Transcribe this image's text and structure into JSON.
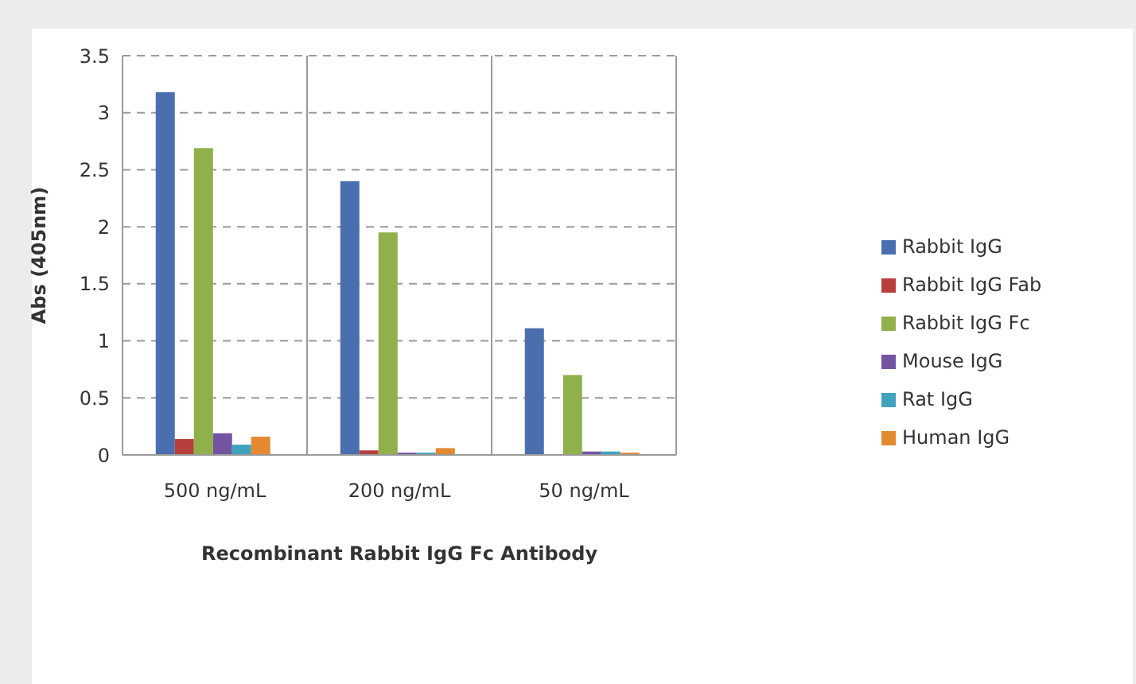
{
  "chart_data": {
    "type": "bar",
    "xlabel": "Recombinant Rabbit IgG Fc Antibody",
    "ylabel": "Abs (405nm)",
    "categories": [
      "500 ng/mL",
      "200 ng/mL",
      "50 ng/mL"
    ],
    "series": [
      {
        "name": "Rabbit IgG",
        "color": "#4a6fae",
        "values": [
          3.18,
          2.4,
          1.11
        ]
      },
      {
        "name": "Rabbit IgG Fab",
        "color": "#b8403c",
        "values": [
          0.14,
          0.04,
          null
        ]
      },
      {
        "name": "Rabbit IgG Fc",
        "color": "#8fb04a",
        "values": [
          2.69,
          1.95,
          0.7
        ]
      },
      {
        "name": "Mouse IgG",
        "color": "#7354a0",
        "values": [
          0.19,
          0.02,
          0.03
        ]
      },
      {
        "name": "Rat IgG",
        "color": "#3fa3c0",
        "values": [
          0.09,
          0.02,
          0.03
        ]
      },
      {
        "name": "Human IgG",
        "color": "#e3892f",
        "values": [
          0.16,
          0.06,
          0.02
        ]
      }
    ],
    "ylim": [
      0,
      3.5
    ],
    "yticks": [
      0,
      0.5,
      1,
      1.5,
      2,
      2.5,
      3,
      3.5
    ],
    "grid": true,
    "legend": "right"
  }
}
